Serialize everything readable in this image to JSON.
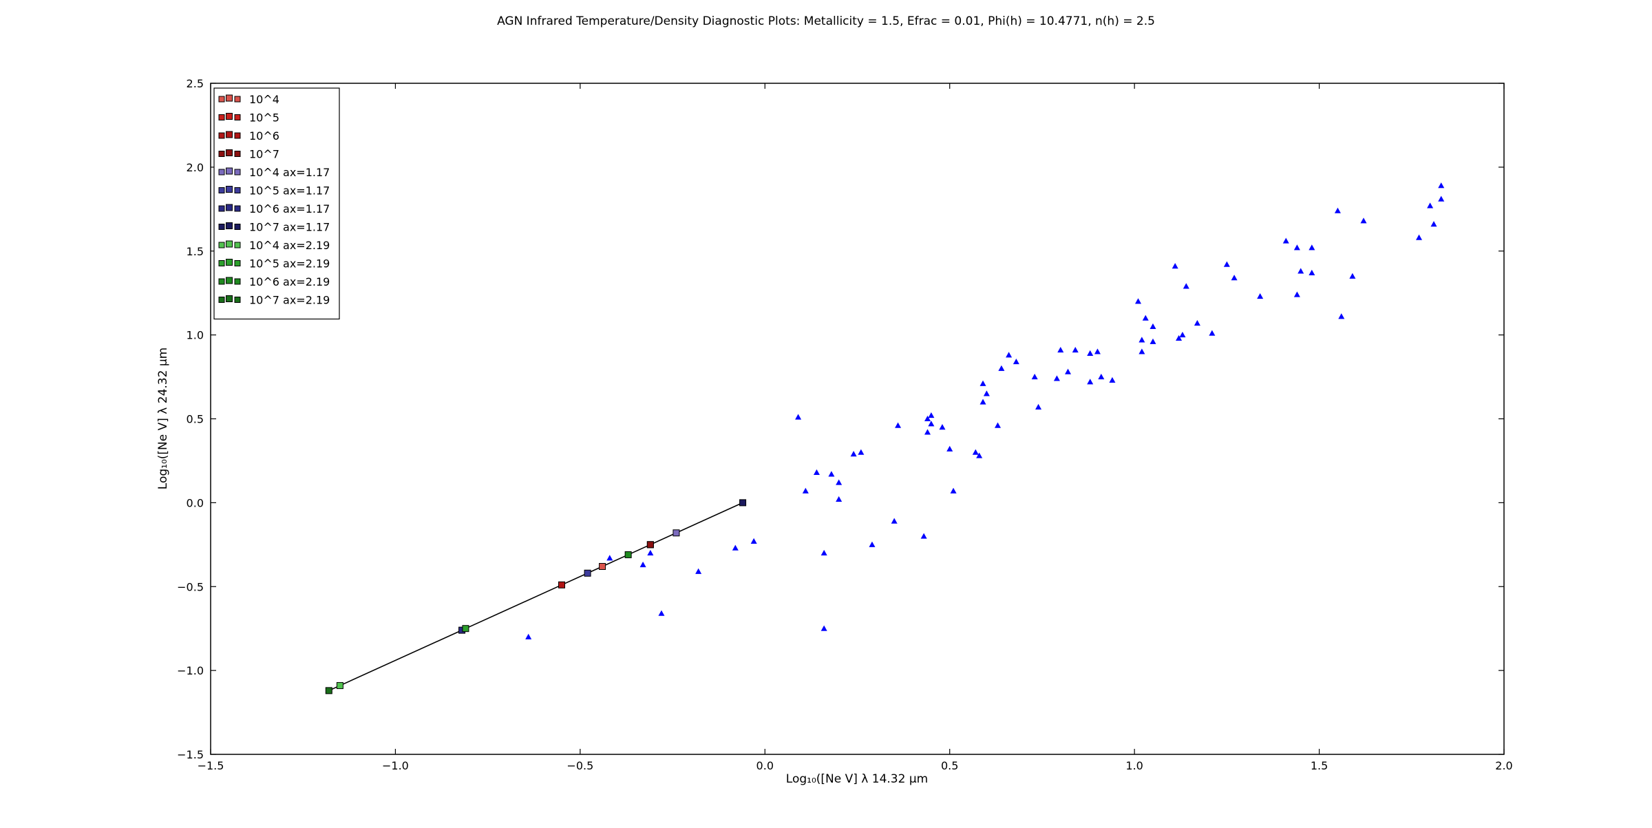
{
  "chart_data": {
    "type": "scatter",
    "title": "AGN Infrared Temperature/Density Diagnostic Plots: Metallicity = 1.5, Efrac = 0.01, Phi(h) = 10.4771, n(h) = 2.5",
    "xlabel": "Log₁₀([Ne V] λ 14.32 μm",
    "ylabel": "Log₁₀([Ne V] λ 24.32 μm",
    "xlim": [
      -1.5,
      2.0
    ],
    "ylim": [
      -1.5,
      2.5
    ],
    "xticks": [
      -1.5,
      -1.0,
      -0.5,
      0.0,
      0.5,
      1.0,
      1.5,
      2.0
    ],
    "yticks": [
      -1.5,
      -1.0,
      -0.5,
      0.0,
      0.5,
      1.0,
      1.5,
      2.0,
      2.5
    ],
    "xtick_labels": [
      "−1.5",
      "−1.0",
      "−0.5",
      "0.0",
      "0.5",
      "1.0",
      "1.5",
      "2.0"
    ],
    "ytick_labels": [
      "−1.5",
      "−1.0",
      "−0.5",
      "0.0",
      "0.5",
      "1.0",
      "1.5",
      "2.0",
      "2.5"
    ],
    "grid": false,
    "legend_position": "top-left",
    "model_line": {
      "color": "#000000",
      "x": [
        -1.18,
        -1.15,
        -0.82,
        -0.81,
        -0.55,
        -0.48,
        -0.44,
        -0.37,
        -0.31,
        -0.24,
        -0.06
      ],
      "y": [
        -1.12,
        -1.09,
        -0.76,
        -0.75,
        -0.49,
        -0.42,
        -0.38,
        -0.31,
        -0.25,
        -0.18,
        0.0
      ]
    },
    "series": [
      {
        "name": "10^4",
        "marker": "square",
        "color": "#d9544d",
        "x": [
          -0.44
        ],
        "y": [
          -0.38
        ]
      },
      {
        "name": "10^5",
        "marker": "square",
        "color": "#c8201d",
        "x": [
          -0.31
        ],
        "y": [
          -0.25
        ]
      },
      {
        "name": "10^6",
        "marker": "square",
        "color": "#b01515",
        "x": [
          -0.55
        ],
        "y": [
          -0.49
        ]
      },
      {
        "name": "10^7",
        "marker": "square",
        "color": "#8b1010",
        "x": [
          -0.31
        ],
        "y": [
          -0.25
        ]
      },
      {
        "name": "10^4 ax=1.17",
        "marker": "square",
        "color": "#7b6bbd",
        "x": [
          -0.24
        ],
        "y": [
          -0.18
        ]
      },
      {
        "name": "10^5 ax=1.17",
        "marker": "square",
        "color": "#3d3c9c",
        "x": [
          -0.48
        ],
        "y": [
          -0.42
        ]
      },
      {
        "name": "10^6 ax=1.17",
        "marker": "square",
        "color": "#2b2a86",
        "x": [
          -0.82
        ],
        "y": [
          -0.76
        ]
      },
      {
        "name": "10^7 ax=1.17",
        "marker": "square",
        "color": "#1b1a5e",
        "x": [
          -0.06
        ],
        "y": [
          0.0
        ]
      },
      {
        "name": "10^4 ax=2.19",
        "marker": "square",
        "color": "#52c24f",
        "x": [
          -1.15
        ],
        "y": [
          -1.09
        ]
      },
      {
        "name": "10^5 ax=2.19",
        "marker": "square",
        "color": "#2ca02c",
        "x": [
          -0.81
        ],
        "y": [
          -0.75
        ]
      },
      {
        "name": "10^6 ax=2.19",
        "marker": "square",
        "color": "#1f8a1f",
        "x": [
          -0.37
        ],
        "y": [
          -0.31
        ]
      },
      {
        "name": "10^7 ax=2.19",
        "marker": "square",
        "color": "#1a6e1a",
        "x": [
          -1.18
        ],
        "y": [
          -1.12
        ]
      }
    ],
    "observations": {
      "marker": "triangle",
      "color": "#0000ff",
      "points": [
        [
          -0.64,
          -0.8
        ],
        [
          -0.42,
          -0.33
        ],
        [
          -0.33,
          -0.37
        ],
        [
          -0.31,
          -0.3
        ],
        [
          -0.28,
          -0.66
        ],
        [
          -0.18,
          -0.41
        ],
        [
          -0.08,
          -0.27
        ],
        [
          -0.03,
          -0.23
        ],
        [
          0.09,
          0.51
        ],
        [
          0.11,
          0.07
        ],
        [
          0.14,
          0.18
        ],
        [
          0.16,
          -0.3
        ],
        [
          0.16,
          -0.75
        ],
        [
          0.18,
          0.17
        ],
        [
          0.2,
          0.12
        ],
        [
          0.2,
          0.02
        ],
        [
          0.24,
          0.29
        ],
        [
          0.26,
          0.3
        ],
        [
          0.29,
          -0.25
        ],
        [
          0.35,
          -0.11
        ],
        [
          0.36,
          0.46
        ],
        [
          0.43,
          -0.2
        ],
        [
          0.44,
          0.5
        ],
        [
          0.44,
          0.42
        ],
        [
          0.45,
          0.52
        ],
        [
          0.45,
          0.47
        ],
        [
          0.48,
          0.45
        ],
        [
          0.5,
          0.32
        ],
        [
          0.51,
          0.07
        ],
        [
          0.57,
          0.3
        ],
        [
          0.58,
          0.28
        ],
        [
          0.59,
          0.6
        ],
        [
          0.59,
          0.71
        ],
        [
          0.6,
          0.65
        ],
        [
          0.63,
          0.46
        ],
        [
          0.64,
          0.8
        ],
        [
          0.66,
          0.88
        ],
        [
          0.68,
          0.84
        ],
        [
          0.73,
          0.75
        ],
        [
          0.74,
          0.57
        ],
        [
          0.79,
          0.74
        ],
        [
          0.8,
          0.91
        ],
        [
          0.82,
          0.78
        ],
        [
          0.84,
          0.91
        ],
        [
          0.88,
          0.89
        ],
        [
          0.88,
          0.72
        ],
        [
          0.9,
          0.9
        ],
        [
          0.91,
          0.75
        ],
        [
          0.94,
          0.73
        ],
        [
          1.01,
          1.2
        ],
        [
          1.02,
          0.97
        ],
        [
          1.02,
          0.9
        ],
        [
          1.03,
          1.1
        ],
        [
          1.05,
          1.05
        ],
        [
          1.05,
          0.96
        ],
        [
          1.11,
          1.41
        ],
        [
          1.12,
          0.98
        ],
        [
          1.13,
          1.0
        ],
        [
          1.14,
          1.29
        ],
        [
          1.17,
          1.07
        ],
        [
          1.21,
          1.01
        ],
        [
          1.25,
          1.42
        ],
        [
          1.27,
          1.34
        ],
        [
          1.34,
          1.23
        ],
        [
          1.41,
          1.56
        ],
        [
          1.44,
          1.52
        ],
        [
          1.44,
          1.24
        ],
        [
          1.45,
          1.38
        ],
        [
          1.48,
          1.52
        ],
        [
          1.48,
          1.37
        ],
        [
          1.55,
          1.74
        ],
        [
          1.56,
          1.11
        ],
        [
          1.59,
          1.35
        ],
        [
          1.62,
          1.68
        ],
        [
          1.77,
          1.58
        ],
        [
          1.8,
          1.77
        ],
        [
          1.81,
          1.66
        ],
        [
          1.83,
          1.89
        ],
        [
          1.83,
          1.81
        ]
      ]
    }
  }
}
